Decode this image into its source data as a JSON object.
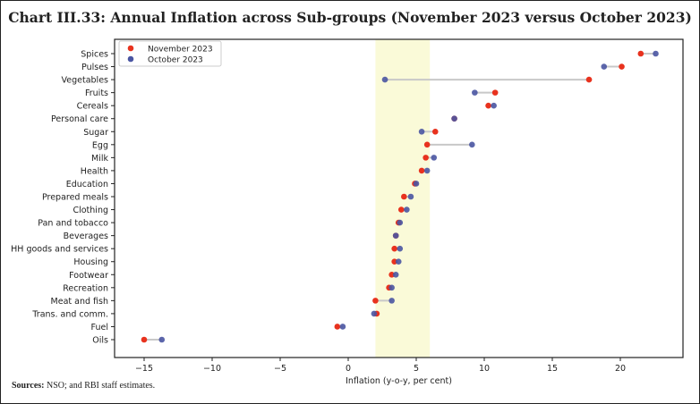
{
  "chart_data": {
    "type": "dot-plot",
    "title": "Chart III.33: Annual Inflation across Sub-groups (November 2023 versus October 2023)",
    "xlabel": "Inflation (y-o-y, per cent)",
    "ylabel": "",
    "xlim": [
      -16.5,
      23.3
    ],
    "xticks": [
      -15,
      -10,
      -5,
      0,
      5,
      10,
      15,
      20
    ],
    "xtick_labels": [
      "−15",
      "−10",
      "−5",
      "0",
      "5",
      "10",
      "15",
      "20"
    ],
    "shaded_band": [
      2,
      6
    ],
    "legend_position": "top-left",
    "categories": [
      "Spices",
      "Pulses",
      "Vegetables",
      "Fruits",
      "Cereals",
      "Personal care",
      "Sugar",
      "Egg",
      "Milk",
      "Health",
      "Education",
      "Prepared meals",
      "Clothing",
      "Pan and tobacco",
      "Beverages",
      "HH goods and services",
      "Housing",
      "Footwear",
      "Recreation",
      "Meat and fish",
      "Trans. and comm.",
      "Fuel",
      "Oils"
    ],
    "series": [
      {
        "name": "November 2023",
        "color": "#e8321e",
        "values": [
          21.5,
          20.1,
          17.7,
          10.8,
          10.3,
          7.8,
          6.4,
          5.8,
          5.7,
          5.4,
          4.9,
          4.1,
          3.9,
          3.7,
          3.5,
          3.4,
          3.4,
          3.2,
          3.0,
          2.0,
          2.1,
          -0.8,
          -15.0
        ]
      },
      {
        "name": "October 2023",
        "color": "#4a55a2",
        "values": [
          22.6,
          18.8,
          2.7,
          9.3,
          10.7,
          7.8,
          5.4,
          9.1,
          6.3,
          5.8,
          5.0,
          4.6,
          4.3,
          3.8,
          3.5,
          3.8,
          3.7,
          3.5,
          3.2,
          3.2,
          1.9,
          -0.4,
          -13.7
        ]
      }
    ],
    "sources_label": "Sources:",
    "sources_text": " NSO; and RBI staff estimates."
  }
}
